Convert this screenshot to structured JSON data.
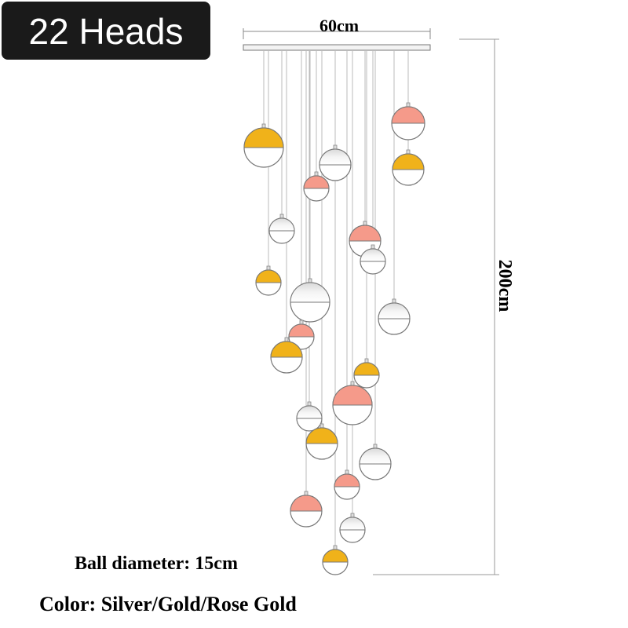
{
  "badge": "22 Heads",
  "dimensions": {
    "width": "60cm",
    "height": "200cm"
  },
  "specs": {
    "ball_diameter": "Ball diameter: 15cm",
    "color": "Color: Silver/Gold/Rose Gold"
  }
}
